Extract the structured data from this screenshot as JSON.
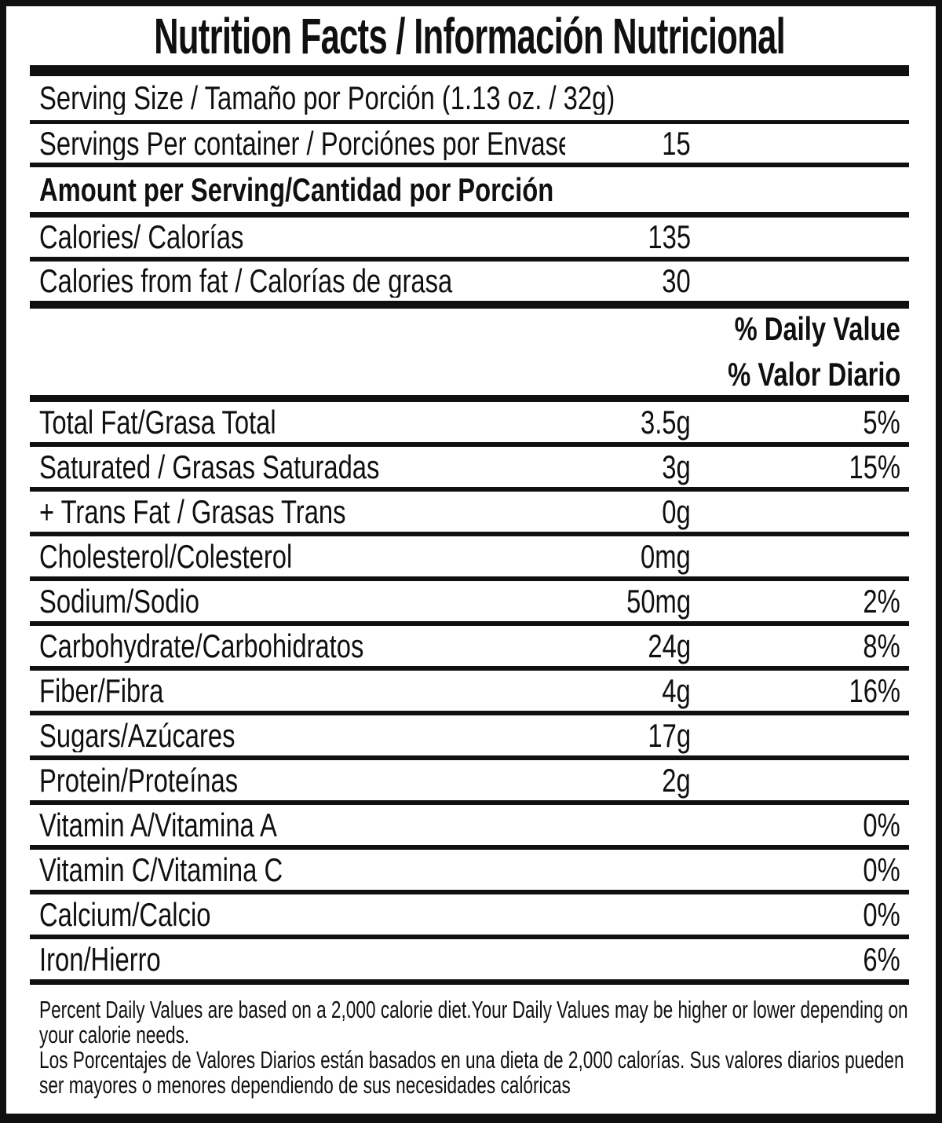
{
  "title": "Nutrition Facts / Información Nutricional",
  "serving_size_label": "Serving Size / Tamaño por Porción (1.13 oz. / 32g)",
  "servings": {
    "label": "Servings Per container / Porciónes por Envase:",
    "value": "15"
  },
  "amount_per_serving_header": "Amount per Serving/Cantidad por Porción",
  "calories": {
    "label": "Calories/ Calorías",
    "value": "135"
  },
  "calories_from_fat": {
    "label": "Calories from fat / Calorías de grasa",
    "value": "30"
  },
  "dv_header": {
    "en": "% Daily Value",
    "es": "% Valor Diario"
  },
  "nutrients": [
    {
      "label": "Total Fat/Grasa Total",
      "amount": "3.5g",
      "dv": "5%"
    },
    {
      "label": "Saturated / Grasas Saturadas",
      "amount": "3g",
      "dv": "15%"
    },
    {
      "label": "+ Trans Fat / Grasas Trans",
      "amount": "0g",
      "dv": ""
    },
    {
      "label": "Cholesterol/Colesterol",
      "amount": "0mg",
      "dv": ""
    },
    {
      "label": "Sodium/Sodio",
      "amount": "50mg",
      "dv": "2%"
    },
    {
      "label": "Carbohydrate/Carbohidratos",
      "amount": "24g",
      "dv": "8%"
    },
    {
      "label": "Fiber/Fibra",
      "amount": "4g",
      "dv": "16%"
    },
    {
      "label": "Sugars/Azúcares",
      "amount": "17g",
      "dv": ""
    },
    {
      "label": "Protein/Proteínas",
      "amount": "2g",
      "dv": ""
    },
    {
      "label": "Vitamin A/Vitamina A",
      "amount": "",
      "dv": "0%"
    },
    {
      "label": "Vitamin C/Vitamina C",
      "amount": "",
      "dv": "0%"
    },
    {
      "label": "Calcium/Calcio",
      "amount": "",
      "dv": "0%"
    },
    {
      "label": "Iron/Hierro",
      "amount": "",
      "dv": "6%"
    }
  ],
  "footnotes": {
    "en": "Percent Daily Values are based on a 2,000 calorie diet.Your Daily Values may be higher or lower depending on your calorie needs.",
    "es": "Los Porcentajes de Valores Diarios están basados en una dieta de 2,000 calorías. Sus valores diarios pueden ser mayores o menores dependiendo de sus necesidades calóricas"
  },
  "colors": {
    "ink": "#101010",
    "paper": "#ffffff"
  }
}
